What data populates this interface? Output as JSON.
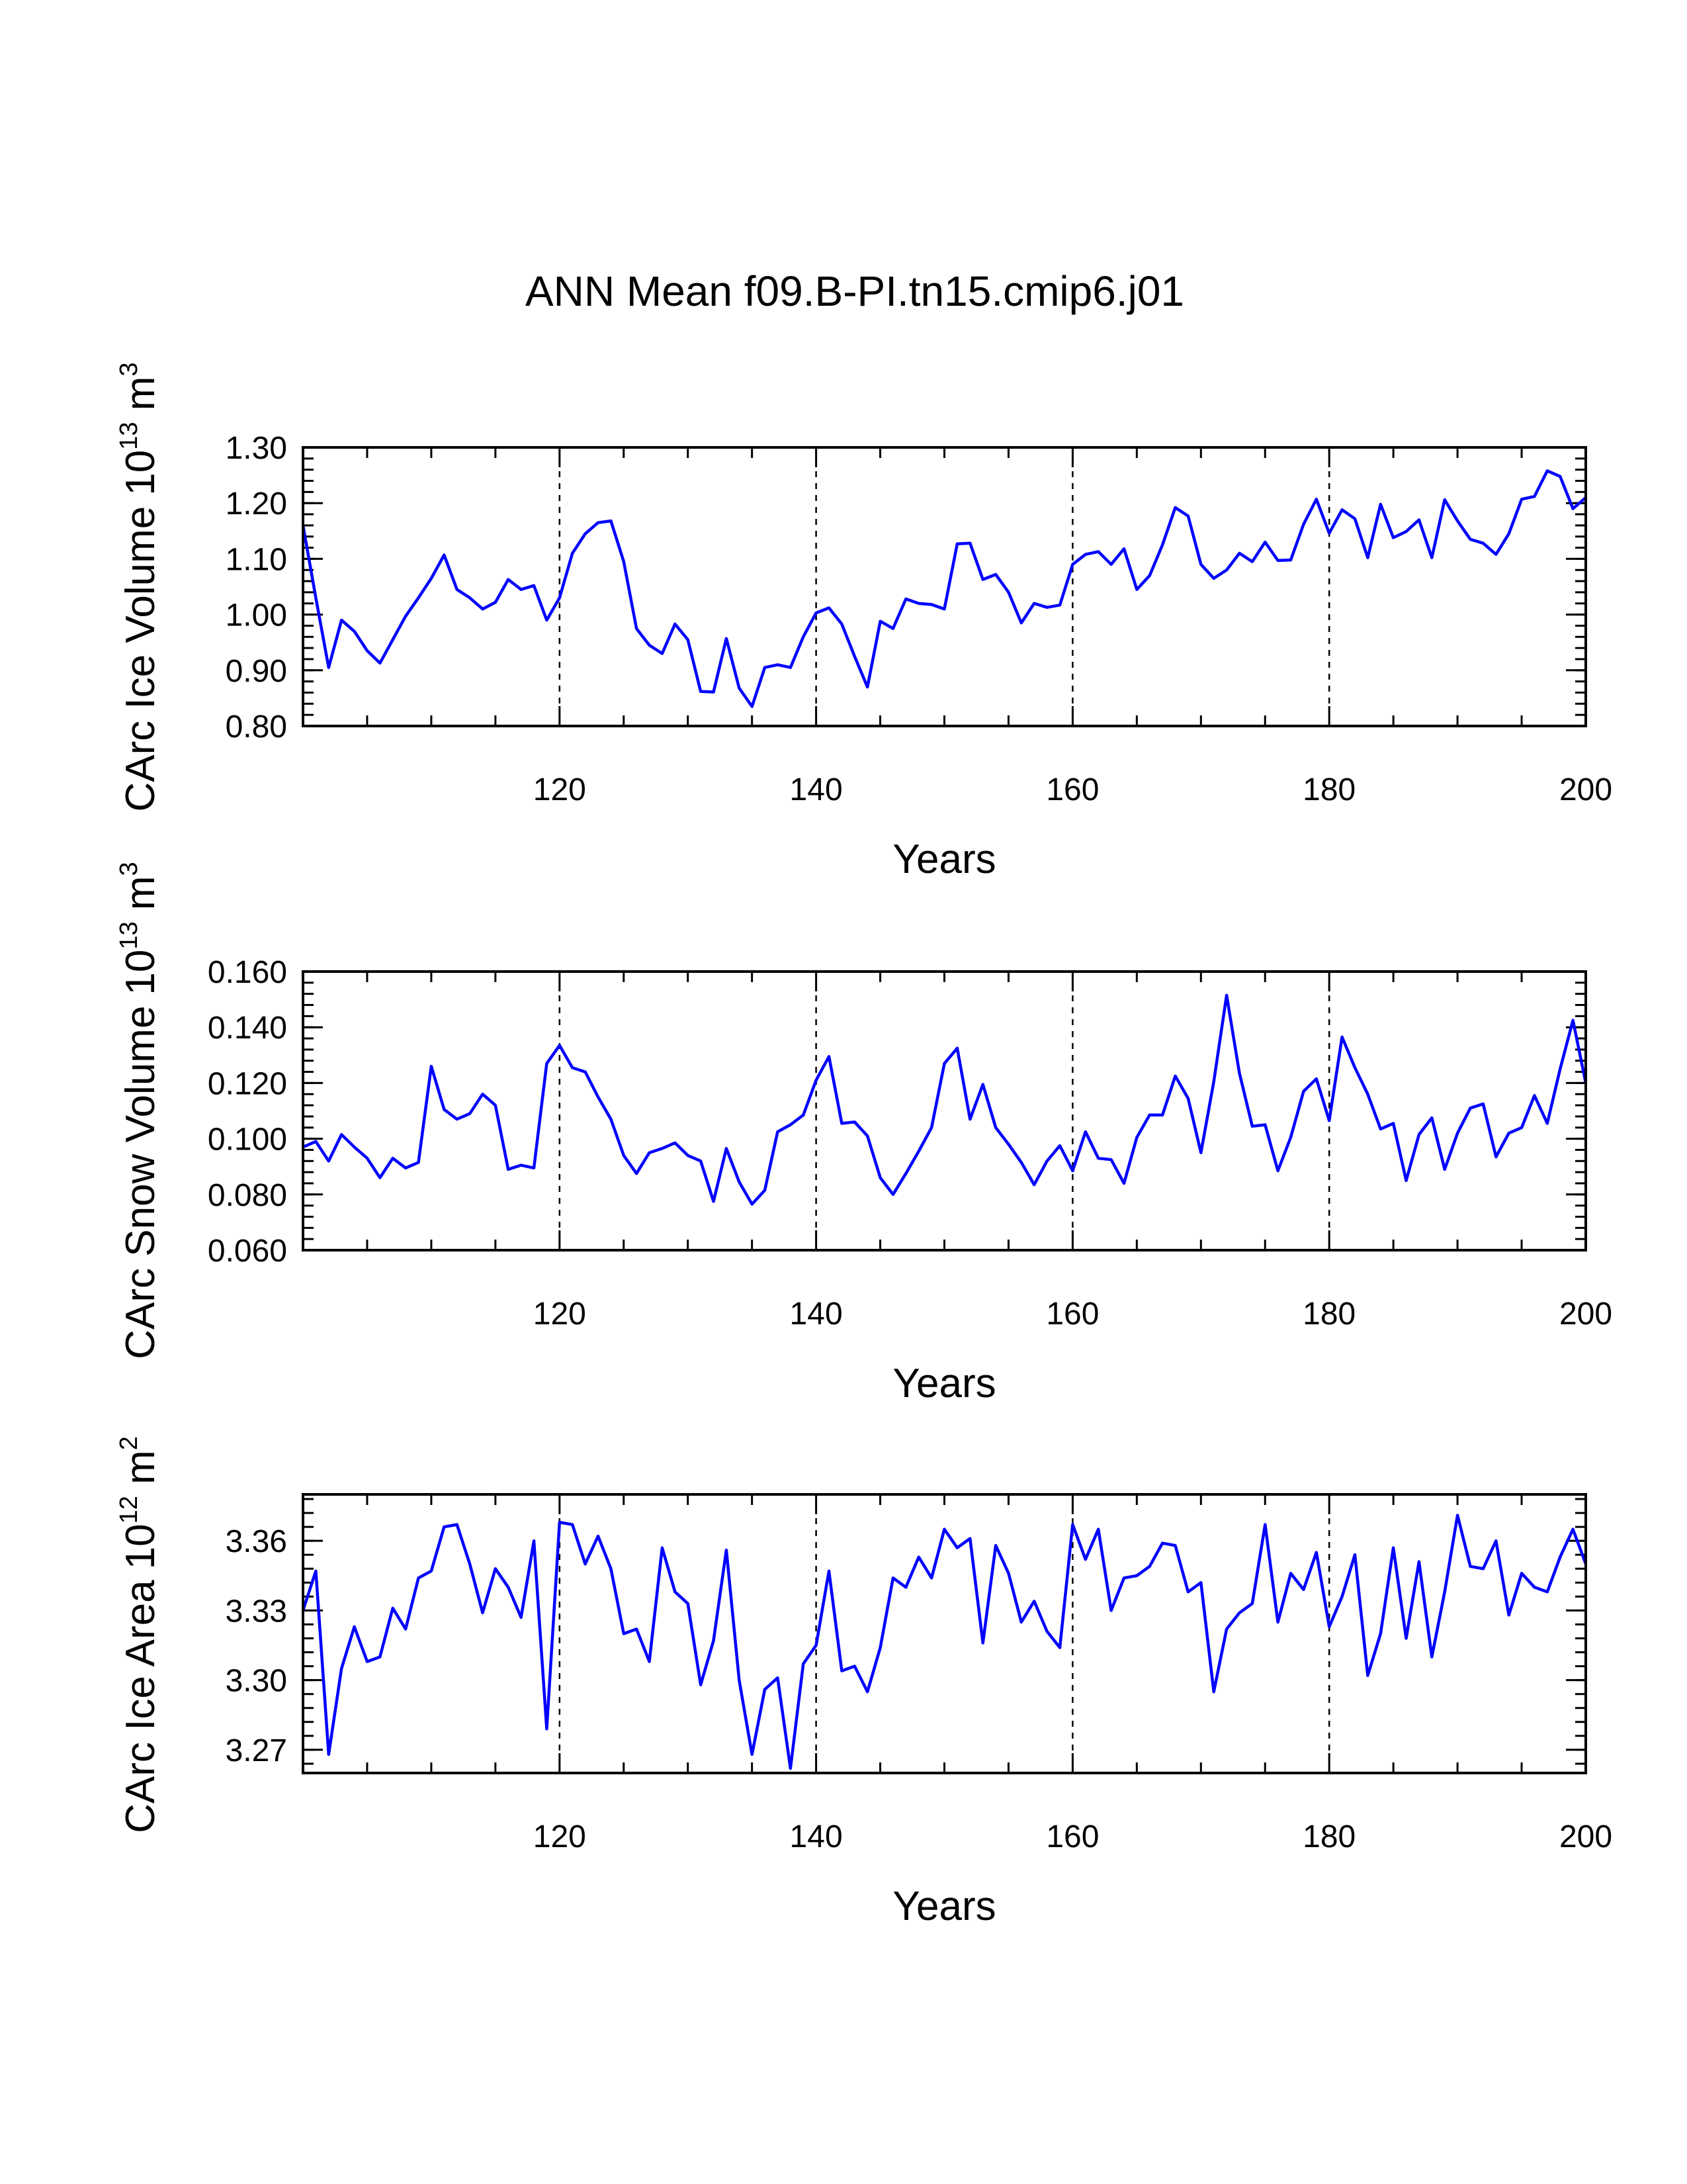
{
  "title": "ANN Mean f09.B-PI.tn15.cmip6.j01",
  "chart_data": [
    {
      "type": "line",
      "name": "ice-volume",
      "title": "",
      "xlabel": "Years",
      "ylabel": "CArc Ice Volume",
      "ylabel_units": {
        "base": "10",
        "exp": "13",
        "unit": " m",
        "uexp": "3"
      },
      "xlim": [
        100,
        200
      ],
      "ylim": [
        0.8,
        1.3
      ],
      "xticks": [
        120,
        140,
        160,
        180,
        200
      ],
      "xtick_labels": [
        "120",
        "140",
        "160",
        "180",
        "200"
      ],
      "yticks": [
        0.8,
        0.9,
        1.0,
        1.1,
        1.2,
        1.3
      ],
      "ytick_labels": [
        "0.80",
        "0.90",
        "1.00",
        "1.10",
        "1.20",
        "1.30"
      ],
      "grid_x": [
        120,
        140,
        160,
        180
      ],
      "color": "#0000ff",
      "x": [
        100,
        101,
        102,
        103,
        104,
        105,
        106,
        107,
        108,
        109,
        110,
        111,
        112,
        113,
        114,
        115,
        116,
        117,
        118,
        119,
        120,
        121,
        122,
        123,
        124,
        125,
        126,
        127,
        128,
        129,
        130,
        131,
        132,
        133,
        134,
        135,
        136,
        137,
        138,
        139,
        140,
        141,
        142,
        143,
        144,
        145,
        146,
        147,
        148,
        149,
        150,
        151,
        152,
        153,
        154,
        155,
        156,
        157,
        158,
        159,
        160,
        161,
        162,
        163,
        164,
        165,
        166,
        167,
        168,
        169,
        170,
        171,
        172,
        173,
        174,
        175,
        176,
        177,
        178,
        179,
        180,
        181,
        182,
        183,
        184,
        185,
        186,
        187,
        188,
        189,
        190,
        191,
        192,
        193,
        194,
        195,
        196,
        197,
        198,
        199,
        200
      ],
      "values": [
        1.16,
        1.03,
        0.905,
        0.99,
        0.97,
        0.935,
        0.913,
        0.955,
        0.997,
        1.03,
        1.065,
        1.107,
        1.045,
        1.03,
        1.01,
        1.022,
        1.063,
        1.045,
        1.052,
        0.99,
        1.03,
        1.11,
        1.145,
        1.165,
        1.168,
        1.095,
        0.975,
        0.945,
        0.93,
        0.983,
        0.955,
        0.862,
        0.861,
        0.957,
        0.868,
        0.835,
        0.905,
        0.91,
        0.905,
        0.96,
        1.003,
        1.012,
        0.983,
        0.925,
        0.87,
        0.988,
        0.975,
        1.028,
        1.02,
        1.018,
        1.01,
        1.127,
        1.128,
        1.063,
        1.072,
        1.04,
        0.985,
        1.02,
        1.013,
        1.017,
        1.09,
        1.108,
        1.113,
        1.09,
        1.118,
        1.045,
        1.07,
        1.125,
        1.192,
        1.177,
        1.09,
        1.065,
        1.08,
        1.11,
        1.095,
        1.13,
        1.097,
        1.098,
        1.162,
        1.207,
        1.146,
        1.188,
        1.172,
        1.102,
        1.198,
        1.138,
        1.149,
        1.17,
        1.102,
        1.206,
        1.168,
        1.135,
        1.128,
        1.108,
        1.145,
        1.207,
        1.212,
        1.258,
        1.248,
        1.19,
        1.21
      ]
    },
    {
      "type": "line",
      "name": "snow-volume",
      "title": "",
      "xlabel": "Years",
      "ylabel": "CArc Snow Volume",
      "ylabel_units": {
        "base": "10",
        "exp": "13",
        "unit": " m",
        "uexp": "3"
      },
      "xlim": [
        100,
        200
      ],
      "ylim": [
        0.06,
        0.16
      ],
      "xticks": [
        120,
        140,
        160,
        180,
        200
      ],
      "xtick_labels": [
        "120",
        "140",
        "160",
        "180",
        "200"
      ],
      "yticks": [
        0.06,
        0.08,
        0.1,
        0.12,
        0.14,
        0.16
      ],
      "ytick_labels": [
        "0.060",
        "0.080",
        "0.100",
        "0.120",
        "0.140",
        "0.160"
      ],
      "grid_x": [
        120,
        140,
        160,
        180
      ],
      "color": "#0000ff",
      "x": [
        100,
        101,
        102,
        103,
        104,
        105,
        106,
        107,
        108,
        109,
        110,
        111,
        112,
        113,
        114,
        115,
        116,
        117,
        118,
        119,
        120,
        121,
        122,
        123,
        124,
        125,
        126,
        127,
        128,
        129,
        130,
        131,
        132,
        133,
        134,
        135,
        136,
        137,
        138,
        139,
        140,
        141,
        142,
        143,
        144,
        145,
        146,
        147,
        148,
        149,
        150,
        151,
        152,
        153,
        154,
        155,
        156,
        157,
        158,
        159,
        160,
        161,
        162,
        163,
        164,
        165,
        166,
        167,
        168,
        169,
        170,
        171,
        172,
        173,
        174,
        175,
        176,
        177,
        178,
        179,
        180,
        181,
        182,
        183,
        184,
        185,
        186,
        187,
        188,
        189,
        190,
        191,
        192,
        193,
        194,
        195,
        196,
        197,
        198,
        199,
        200
      ],
      "values": [
        0.097,
        0.099,
        0.092,
        0.1015,
        0.097,
        0.093,
        0.086,
        0.093,
        0.0895,
        0.0915,
        0.126,
        0.1105,
        0.107,
        0.109,
        0.116,
        0.112,
        0.089,
        0.0905,
        0.0895,
        0.127,
        0.1335,
        0.1255,
        0.124,
        0.115,
        0.107,
        0.094,
        0.0875,
        0.095,
        0.0965,
        0.0985,
        0.094,
        0.092,
        0.0775,
        0.0965,
        0.0845,
        0.0765,
        0.0815,
        0.1025,
        0.105,
        0.1085,
        0.121,
        0.1295,
        0.1055,
        0.106,
        0.101,
        0.086,
        0.08,
        0.0875,
        0.0955,
        0.104,
        0.127,
        0.1325,
        0.107,
        0.1195,
        0.104,
        0.098,
        0.0915,
        0.0835,
        0.092,
        0.0975,
        0.0885,
        0.1025,
        0.093,
        0.0925,
        0.084,
        0.1005,
        0.1085,
        0.1085,
        0.1225,
        0.1145,
        0.095,
        0.1205,
        0.1515,
        0.1235,
        0.1045,
        0.105,
        0.0885,
        0.1005,
        0.117,
        0.1215,
        0.1065,
        0.1365,
        0.1255,
        0.116,
        0.1035,
        0.1055,
        0.085,
        0.1015,
        0.1075,
        0.089,
        0.102,
        0.111,
        0.1125,
        0.0935,
        0.102,
        0.104,
        0.1155,
        0.1055,
        0.125,
        0.1425,
        0.12
      ]
    },
    {
      "type": "line",
      "name": "ice-area",
      "title": "",
      "xlabel": "Years",
      "ylabel": "CArc Ice Area",
      "ylabel_units": {
        "base": "10",
        "exp": "12",
        "unit": " m",
        "uexp": "2"
      },
      "xlim": [
        100,
        200
      ],
      "ylim": [
        3.26,
        3.38
      ],
      "xticks": [
        120,
        140,
        160,
        180,
        200
      ],
      "xtick_labels": [
        "120",
        "140",
        "160",
        "180",
        "200"
      ],
      "yticks": [
        3.27,
        3.3,
        3.33,
        3.36
      ],
      "ytick_labels": [
        "3.27",
        "3.30",
        "3.33",
        "3.36"
      ],
      "grid_x": [
        120,
        140,
        160,
        180
      ],
      "color": "#0000ff",
      "x": [
        100,
        101,
        102,
        103,
        104,
        105,
        106,
        107,
        108,
        109,
        110,
        111,
        112,
        113,
        114,
        115,
        116,
        117,
        118,
        119,
        120,
        121,
        122,
        123,
        124,
        125,
        126,
        127,
        128,
        129,
        130,
        131,
        132,
        133,
        134,
        135,
        136,
        137,
        138,
        139,
        140,
        141,
        142,
        143,
        144,
        145,
        146,
        147,
        148,
        149,
        150,
        151,
        152,
        153,
        154,
        155,
        156,
        157,
        158,
        159,
        160,
        161,
        162,
        163,
        164,
        165,
        166,
        167,
        168,
        169,
        170,
        171,
        172,
        173,
        174,
        175,
        176,
        177,
        178,
        179,
        180,
        181,
        182,
        183,
        184,
        185,
        186,
        187,
        188,
        189,
        190,
        191,
        192,
        193,
        194,
        195,
        196,
        197,
        198,
        199,
        200
      ],
      "values": [
        3.33,
        3.347,
        3.268,
        3.305,
        3.323,
        3.308,
        3.31,
        3.331,
        3.322,
        3.344,
        3.347,
        3.366,
        3.367,
        3.35,
        3.329,
        3.348,
        3.34,
        3.327,
        3.36,
        3.279,
        3.368,
        3.367,
        3.35,
        3.362,
        3.348,
        3.32,
        3.322,
        3.308,
        3.357,
        3.338,
        3.333,
        3.298,
        3.317,
        3.356,
        3.3,
        3.268,
        3.296,
        3.301,
        3.262,
        3.307,
        3.315,
        3.347,
        3.304,
        3.306,
        3.295,
        3.314,
        3.344,
        3.34,
        3.353,
        3.344,
        3.365,
        3.357,
        3.361,
        3.316,
        3.358,
        3.346,
        3.325,
        3.334,
        3.321,
        3.314,
        3.367,
        3.352,
        3.365,
        3.33,
        3.344,
        3.345,
        3.349,
        3.359,
        3.358,
        3.338,
        3.342,
        3.295,
        3.322,
        3.329,
        3.333,
        3.367,
        3.325,
        3.346,
        3.339,
        3.355,
        3.323,
        3.336,
        3.354,
        3.302,
        3.32,
        3.357,
        3.318,
        3.351,
        3.31,
        3.338,
        3.371,
        3.349,
        3.348,
        3.36,
        3.328,
        3.346,
        3.34,
        3.338,
        3.353,
        3.365,
        3.35
      ]
    }
  ]
}
